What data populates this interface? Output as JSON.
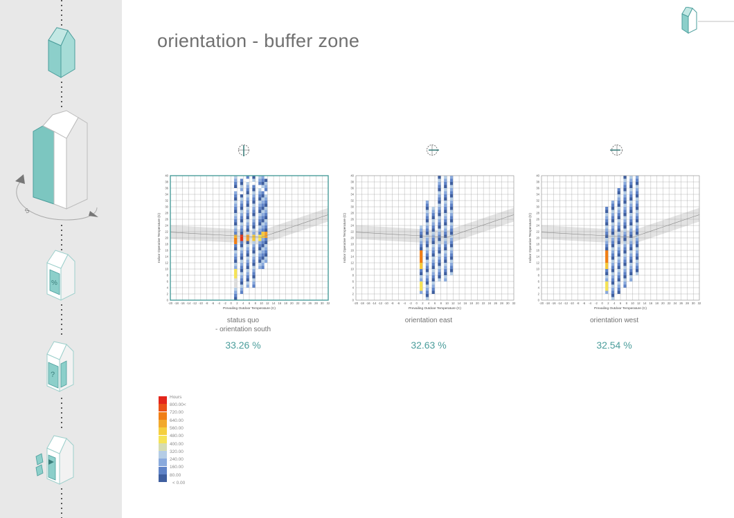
{
  "title": "orientation - buffer zone",
  "sidebar": {
    "rotation_label": "S",
    "icon_window_label": "%",
    "icon_question_label": "?"
  },
  "colors": {
    "accent": "#4a9d9b",
    "teal_fill": "#8ccfca",
    "frame_highlight": "#4a9d9b",
    "comfort_band": "#d9d9d9"
  },
  "chart_data": [
    {
      "type": "heatmap",
      "xlabel": "Prevailing Outdoor Temperature (C)",
      "ylabel": "Indoor Operative Temperature (C)",
      "xlim": [
        -20,
        32
      ],
      "ylim": [
        0,
        40
      ],
      "xticks": [
        -20,
        -18,
        -16,
        -14,
        -12,
        -10,
        -8,
        -6,
        -4,
        -2,
        0,
        2,
        4,
        6,
        8,
        10,
        12,
        14,
        16,
        18,
        20,
        22,
        24,
        26,
        28,
        30,
        32
      ],
      "yticks": [
        0,
        2,
        4,
        6,
        8,
        10,
        12,
        14,
        16,
        18,
        20,
        22,
        24,
        26,
        28,
        30,
        32,
        34,
        36,
        38,
        40
      ],
      "grid": true,
      "highlighted": true,
      "caption": [
        "status quo",
        "- orientation south"
      ],
      "result": "33.26 %",
      "columns": [
        {
          "x": 1,
          "y_from": 0,
          "y_to": 40,
          "hot": [
            [
              18,
              20,
              "#f07e15"
            ],
            [
              20,
              21,
              "#f5b82e"
            ],
            [
              7,
              10,
              "#f5e356"
            ],
            [
              4,
              7,
              "#dcdcdc"
            ]
          ]
        },
        {
          "x": 3,
          "y_from": 2,
          "y_to": 40,
          "hot": [
            [
              19,
              21,
              "#e73016"
            ]
          ]
        },
        {
          "x": 5,
          "y_from": 4,
          "y_to": 40,
          "hot": [
            [
              19,
              21,
              "#f2a02d"
            ]
          ]
        },
        {
          "x": 7,
          "y_from": 4,
          "y_to": 40,
          "hot": [
            [
              19,
              21,
              "#f5c93a"
            ]
          ]
        },
        {
          "x": 9,
          "y_from": 10,
          "y_to": 40,
          "hot": [
            [
              19,
              21,
              "#f5e356"
            ]
          ]
        },
        {
          "x": 10,
          "y_from": 10,
          "y_to": 40,
          "hot": [
            [
              20,
              22,
              "#f5c93a"
            ]
          ]
        },
        {
          "x": 11,
          "y_from": 12,
          "y_to": 40,
          "hot": [
            [
              20,
              22,
              "#f2a02d"
            ]
          ]
        }
      ]
    },
    {
      "type": "heatmap",
      "xlabel": "Prevailing Outdoor Temperature (C)",
      "ylabel": "Indoor Operative Temperature (C)",
      "xlim": [
        -20,
        32
      ],
      "ylim": [
        0,
        40
      ],
      "xticks": [
        -20,
        -18,
        -16,
        -14,
        -12,
        -10,
        -8,
        -6,
        -4,
        -2,
        0,
        2,
        4,
        6,
        8,
        10,
        12,
        14,
        16,
        18,
        20,
        22,
        24,
        26,
        28,
        30,
        32
      ],
      "yticks": [
        0,
        2,
        4,
        6,
        8,
        10,
        12,
        14,
        16,
        18,
        20,
        22,
        24,
        26,
        28,
        30,
        32,
        34,
        36,
        38,
        40
      ],
      "grid": true,
      "highlighted": false,
      "caption": [
        "orientation east"
      ],
      "result": "32.63 %",
      "columns": [
        {
          "x": 1,
          "y_from": 2,
          "y_to": 24,
          "hot": [
            [
              12,
              16,
              "#f07e15"
            ],
            [
              10,
              12,
              "#f5c93a"
            ],
            [
              3,
              6,
              "#f5e356"
            ]
          ]
        },
        {
          "x": 3,
          "y_from": 0,
          "y_to": 32,
          "hot": []
        },
        {
          "x": 5,
          "y_from": 2,
          "y_to": 30,
          "hot": []
        },
        {
          "x": 7,
          "y_from": 6,
          "y_to": 40,
          "hot": []
        },
        {
          "x": 9,
          "y_from": 6,
          "y_to": 40,
          "hot": []
        },
        {
          "x": 11,
          "y_from": 8,
          "y_to": 40,
          "hot": []
        }
      ]
    },
    {
      "type": "heatmap",
      "xlabel": "Prevailing Outdoor Temperature (C)",
      "ylabel": "Indoor Operative Temperature (C)",
      "xlim": [
        -20,
        32
      ],
      "ylim": [
        0,
        40
      ],
      "xticks": [
        -20,
        -18,
        -16,
        -14,
        -12,
        -10,
        -8,
        -6,
        -4,
        -2,
        0,
        2,
        4,
        6,
        8,
        10,
        12,
        14,
        16,
        18,
        20,
        22,
        24,
        26,
        28,
        30,
        32
      ],
      "yticks": [
        0,
        2,
        4,
        6,
        8,
        10,
        12,
        14,
        16,
        18,
        20,
        22,
        24,
        26,
        28,
        30,
        32,
        34,
        36,
        38,
        40
      ],
      "grid": true,
      "highlighted": false,
      "caption": [
        "orientation west"
      ],
      "result": "32.54 %",
      "columns": [
        {
          "x": 1,
          "y_from": 2,
          "y_to": 30,
          "hot": [
            [
              12,
              16,
              "#f07e15"
            ],
            [
              10,
              12,
              "#f5c93a"
            ],
            [
              3,
              6,
              "#f5e356"
            ]
          ]
        },
        {
          "x": 3,
          "y_from": 0,
          "y_to": 32,
          "hot": []
        },
        {
          "x": 5,
          "y_from": 2,
          "y_to": 36,
          "hot": []
        },
        {
          "x": 7,
          "y_from": 4,
          "y_to": 40,
          "hot": []
        },
        {
          "x": 9,
          "y_from": 6,
          "y_to": 40,
          "hot": []
        },
        {
          "x": 11,
          "y_from": 8,
          "y_to": 40,
          "hot": []
        }
      ]
    }
  ],
  "legend": {
    "title": "Hours",
    "items": [
      {
        "label": "800.00<",
        "color": "#e3261b"
      },
      {
        "label": "720.00",
        "color": "#ea5218"
      },
      {
        "label": "640.00",
        "color": "#f07e15"
      },
      {
        "label": "560.00",
        "color": "#f2a92d"
      },
      {
        "label": "480.00",
        "color": "#f5cf3e"
      },
      {
        "label": "400.00",
        "color": "#f5e356"
      },
      {
        "label": "320.00",
        "color": "#d5dcb2"
      },
      {
        "label": "240.00",
        "color": "#b5cde6"
      },
      {
        "label": "160.00",
        "color": "#8aaadd"
      },
      {
        "label": "80.00",
        "color": "#5f83c7"
      },
      {
        "label": "< 0.00",
        "color": "#3f5f9f"
      }
    ]
  }
}
